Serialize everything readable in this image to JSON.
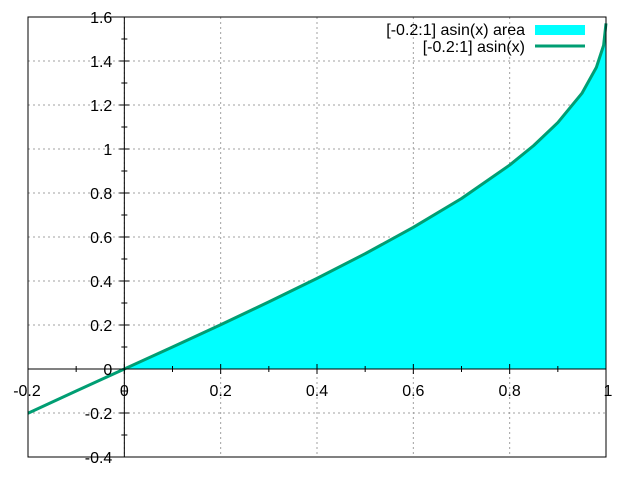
{
  "chart_data": {
    "type": "area",
    "xlim": [
      -0.2,
      1.0
    ],
    "ylim": [
      -0.4,
      1.6
    ],
    "x_ticks": [
      -0.2,
      0,
      0.2,
      0.4,
      0.6,
      0.8,
      1
    ],
    "x_tick_labels": [
      "-0.2",
      "0",
      "0.2",
      "0.4",
      "0.6",
      "0.8",
      "1"
    ],
    "y_ticks": [
      -0.4,
      -0.2,
      0,
      0.2,
      0.4,
      0.6,
      0.8,
      1,
      1.2,
      1.4,
      1.6
    ],
    "y_tick_labels": [
      "-0.4",
      "-0.2",
      "0",
      "0.2",
      "0.4",
      "0.6",
      "0.8",
      "1",
      "1.2",
      "1.4",
      "1.6"
    ],
    "grid": true,
    "legend_position": "top-right",
    "series": [
      {
        "name": "[-0.2:1] asin(x) area",
        "kind": "area",
        "color": "#00ffff",
        "x": [
          -0.2,
          -0.1,
          0,
          0.1,
          0.2,
          0.3,
          0.4,
          0.5,
          0.6,
          0.7,
          0.8,
          0.85,
          0.9,
          0.95,
          0.98,
          0.995,
          1.0
        ],
        "y": [
          -0.201,
          -0.1,
          0,
          0.1,
          0.201,
          0.305,
          0.412,
          0.524,
          0.644,
          0.775,
          0.927,
          1.016,
          1.12,
          1.253,
          1.371,
          1.471,
          1.571
        ]
      },
      {
        "name": "[-0.2:1] asin(x)",
        "kind": "line",
        "color": "#009e73",
        "x": [
          -0.2,
          -0.1,
          0,
          0.1,
          0.2,
          0.3,
          0.4,
          0.5,
          0.6,
          0.7,
          0.8,
          0.85,
          0.9,
          0.95,
          0.98,
          0.995,
          1.0
        ],
        "y": [
          -0.201,
          -0.1,
          0,
          0.1,
          0.201,
          0.305,
          0.412,
          0.524,
          0.644,
          0.775,
          0.927,
          1.016,
          1.12,
          1.253,
          1.371,
          1.471,
          1.571
        ]
      }
    ]
  }
}
